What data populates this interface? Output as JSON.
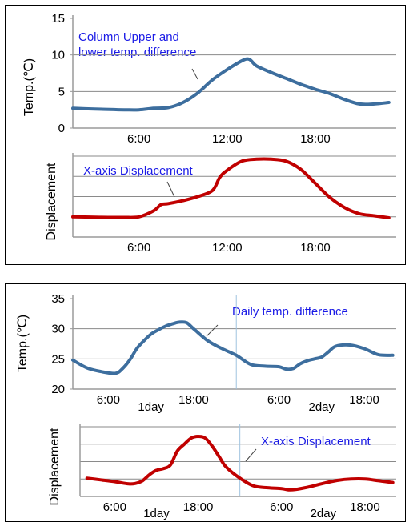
{
  "panels": [
    {
      "name": "panel-1",
      "charts": [
        {
          "type": "line",
          "id": "c1",
          "ylabel": "Temp.(℃)",
          "ylim": [
            0,
            15
          ],
          "yticks": [
            0,
            5,
            10,
            15
          ],
          "show_ytick_labels": true,
          "xlim": [
            1.5,
            23.5
          ],
          "xticks": [
            {
              "x": 6,
              "label": "6:00"
            },
            {
              "x": 12,
              "label": "12:00"
            },
            {
              "x": 18,
              "label": "18:00"
            }
          ],
          "gridlines": [
            5,
            10
          ],
          "color": "#3d6e9e",
          "annotation": {
            "lines": [
              "Column Upper and",
              "lower temp. difference"
            ]
          },
          "series": [
            {
              "x": [
                1.5,
                3,
                4,
                5,
                6,
                7,
                8,
                9,
                10,
                11,
                12,
                13,
                13.5,
                14,
                15,
                16,
                17,
                18,
                19,
                20,
                21,
                22,
                23
              ],
              "y": [
                2.7,
                2.6,
                2.55,
                2.5,
                2.5,
                2.7,
                2.8,
                3.5,
                4.8,
                6.6,
                8.0,
                9.2,
                9.4,
                8.5,
                7.6,
                6.8,
                6.0,
                5.3,
                4.7,
                3.9,
                3.3,
                3.3,
                3.5
              ]
            }
          ]
        },
        {
          "type": "line",
          "id": "c2",
          "ylabel": "Displacement",
          "ylim": [
            0,
            4
          ],
          "yticks": [
            0,
            1,
            2,
            3,
            4
          ],
          "show_ytick_labels": false,
          "xlim": [
            1.5,
            23.5
          ],
          "xticks": [
            {
              "x": 6,
              "label": "6:00"
            },
            {
              "x": 12,
              "label": "12:00"
            },
            {
              "x": 18,
              "label": "18:00"
            }
          ],
          "gridlines": [
            1,
            2,
            3,
            4
          ],
          "color": "#c00000",
          "annotation": {
            "lines": [
              "X-axis Displacement"
            ]
          },
          "series": [
            {
              "x": [
                1.5,
                3,
                4,
                5,
                6,
                7,
                7.5,
                8,
                9,
                10,
                11,
                11.5,
                12,
                13,
                14,
                15,
                16,
                17,
                18,
                19,
                20,
                21,
                22,
                23
              ],
              "y": [
                1.0,
                0.98,
                0.97,
                0.97,
                1.0,
                1.3,
                1.6,
                1.65,
                1.8,
                2.0,
                2.3,
                2.95,
                3.3,
                3.75,
                3.85,
                3.85,
                3.75,
                3.35,
                2.65,
                1.95,
                1.45,
                1.15,
                1.05,
                0.95
              ]
            }
          ]
        }
      ]
    },
    {
      "name": "panel-2",
      "charts": [
        {
          "type": "line",
          "id": "c3",
          "ylabel": "Temp.(℃)",
          "ylim": [
            20,
            35
          ],
          "yticks": [
            20,
            25,
            30,
            35
          ],
          "show_ytick_labels": true,
          "xlim": [
            1.0,
            46.5
          ],
          "xticks": [
            {
              "x": 6,
              "label": "6:00"
            },
            {
              "x": 18,
              "label": "18:00"
            },
            {
              "x": 30,
              "label": "6:00"
            },
            {
              "x": 42,
              "label": "18:00"
            }
          ],
          "day_labels": [
            {
              "x": 12,
              "label": "1day"
            },
            {
              "x": 36,
              "label": "2day"
            }
          ],
          "gridlines": [
            25,
            30
          ],
          "separator_x": 24,
          "color": "#3d6e9e",
          "annotation": {
            "lines": [
              "Daily temp. difference"
            ]
          },
          "series": [
            {
              "x": [
                1,
                3,
                5,
                7,
                8,
                9,
                10,
                11,
                12,
                13,
                14,
                15,
                16,
                17,
                18,
                20,
                22,
                24,
                26,
                28,
                30,
                31,
                32,
                33,
                34,
                35,
                36,
                37,
                38,
                40,
                42,
                44,
                46
              ],
              "y": [
                24.8,
                23.5,
                22.9,
                22.6,
                23.4,
                24.8,
                26.7,
                28.0,
                29.1,
                29.8,
                30.4,
                30.8,
                31.1,
                31.0,
                30.0,
                28.0,
                26.7,
                25.6,
                24.1,
                23.8,
                23.7,
                23.3,
                23.4,
                24.2,
                24.7,
                25.0,
                25.3,
                26.2,
                27.1,
                27.3,
                26.7,
                25.7,
                25.6
              ]
            }
          ]
        },
        {
          "type": "line",
          "id": "c4",
          "ylabel": "Displacement",
          "ylim": [
            0,
            4
          ],
          "yticks": [
            0,
            1,
            2,
            3,
            4
          ],
          "show_ytick_labels": false,
          "xlim": [
            1.0,
            46.5
          ],
          "xticks": [
            {
              "x": 6,
              "label": "6:00"
            },
            {
              "x": 18,
              "label": "18:00"
            },
            {
              "x": 30,
              "label": "6:00"
            },
            {
              "x": 42,
              "label": "18:00"
            }
          ],
          "day_labels": [
            {
              "x": 12,
              "label": "1day"
            },
            {
              "x": 36,
              "label": "2day"
            }
          ],
          "gridlines": [
            1,
            2,
            3,
            4
          ],
          "separator_x": 24,
          "color": "#c00000",
          "annotation": {
            "lines": [
              "X-axis Displacement"
            ]
          },
          "series": [
            {
              "x": [
                2,
                4,
                6,
                8,
                9,
                10,
                11,
                12,
                13,
                14,
                15,
                16,
                17,
                18,
                19,
                20,
                21,
                22,
                24,
                26,
                28,
                30,
                31,
                32,
                34,
                36,
                38,
                40,
                42,
                44,
                46
              ],
              "y": [
                1.05,
                0.95,
                0.85,
                0.72,
                0.75,
                0.9,
                1.25,
                1.5,
                1.6,
                1.8,
                2.6,
                3.0,
                3.35,
                3.45,
                3.35,
                2.9,
                2.3,
                1.7,
                1.05,
                0.6,
                0.5,
                0.45,
                0.38,
                0.4,
                0.55,
                0.75,
                0.92,
                1.0,
                1.0,
                0.9,
                0.8
              ]
            }
          ]
        }
      ]
    }
  ]
}
